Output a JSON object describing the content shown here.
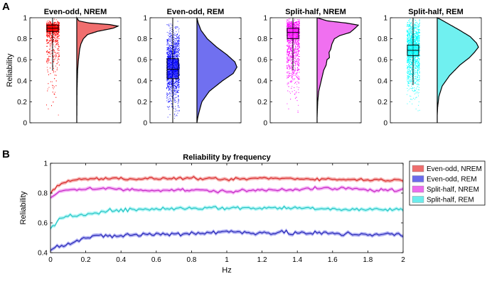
{
  "chart_data": [
    {
      "type": "raincloud",
      "panel_label": "A",
      "ylabel": "Reliability",
      "ylim": [
        0,
        1
      ],
      "yticks": [
        "0",
        "0.2",
        "0.4",
        "0.6",
        "0.8",
        "1"
      ],
      "subplots": [
        {
          "title": "Even-odd, NREM",
          "color": "#ff0000",
          "fill": "#f06e6e",
          "median": 0.9,
          "q1": 0.87,
          "q3": 0.93,
          "whisker_low": 0.5,
          "whisker_high": 1.0,
          "points_min": 0.06,
          "density": [
            [
              0.02,
              0.0
            ],
            [
              0.3,
              0.005
            ],
            [
              0.5,
              0.02
            ],
            [
              0.6,
              0.04
            ],
            [
              0.7,
              0.07
            ],
            [
              0.75,
              0.1
            ],
            [
              0.8,
              0.16
            ],
            [
              0.84,
              0.26
            ],
            [
              0.87,
              0.5
            ],
            [
              0.9,
              0.88
            ],
            [
              0.92,
              1.0
            ],
            [
              0.935,
              0.8
            ],
            [
              0.95,
              0.3
            ],
            [
              0.97,
              0.05
            ],
            [
              1.0,
              0.0
            ]
          ]
        },
        {
          "title": "Even-odd, REM",
          "color": "#0000ff",
          "fill": "#7070f0",
          "median": 0.51,
          "q1": 0.42,
          "q3": 0.61,
          "whisker_low": 0.0,
          "whisker_high": 1.0,
          "points_min": 0.0,
          "density": [
            [
              0.0,
              0.0
            ],
            [
              0.05,
              0.02
            ],
            [
              0.1,
              0.05
            ],
            [
              0.2,
              0.12
            ],
            [
              0.3,
              0.3
            ],
            [
              0.4,
              0.62
            ],
            [
              0.47,
              0.88
            ],
            [
              0.53,
              0.97
            ],
            [
              0.58,
              0.92
            ],
            [
              0.65,
              0.72
            ],
            [
              0.72,
              0.48
            ],
            [
              0.8,
              0.25
            ],
            [
              0.88,
              0.1
            ],
            [
              0.95,
              0.03
            ],
            [
              1.0,
              0.0
            ]
          ]
        },
        {
          "title": "Split-half, NREM",
          "color": "#ff00ff",
          "fill": "#f070f0",
          "median": 0.86,
          "q1": 0.8,
          "q3": 0.9,
          "whisker_low": 0.5,
          "whisker_high": 1.0,
          "points_min": 0.07,
          "density": [
            [
              0.05,
              0.0
            ],
            [
              0.2,
              0.015
            ],
            [
              0.3,
              0.04
            ],
            [
              0.4,
              0.1
            ],
            [
              0.5,
              0.16
            ],
            [
              0.55,
              0.22
            ],
            [
              0.6,
              0.24
            ],
            [
              0.62,
              0.3
            ],
            [
              0.67,
              0.29
            ],
            [
              0.7,
              0.33
            ],
            [
              0.75,
              0.36
            ],
            [
              0.8,
              0.42
            ],
            [
              0.83,
              0.55
            ],
            [
              0.86,
              0.8
            ],
            [
              0.9,
              0.92
            ],
            [
              0.93,
              1.0
            ],
            [
              0.95,
              0.7
            ],
            [
              0.97,
              0.25
            ],
            [
              1.0,
              0.0
            ]
          ]
        },
        {
          "title": "Split-half, REM",
          "color": "#00ffff",
          "fill": "#70f0f0",
          "median": 0.69,
          "q1": 0.64,
          "q3": 0.74,
          "whisker_low": 0.36,
          "whisker_high": 1.0,
          "points_min": 0.07,
          "density": [
            [
              0.07,
              0.0
            ],
            [
              0.15,
              0.01
            ],
            [
              0.25,
              0.04
            ],
            [
              0.35,
              0.12
            ],
            [
              0.45,
              0.3
            ],
            [
              0.55,
              0.55
            ],
            [
              0.62,
              0.78
            ],
            [
              0.67,
              0.9
            ],
            [
              0.72,
              1.0
            ],
            [
              0.76,
              0.95
            ],
            [
              0.82,
              0.8
            ],
            [
              0.88,
              0.55
            ],
            [
              0.94,
              0.28
            ],
            [
              0.98,
              0.1
            ],
            [
              1.0,
              0.0
            ]
          ]
        }
      ]
    },
    {
      "type": "line",
      "panel_label": "B",
      "title": "Reliability by frequency",
      "xlabel": "Hz",
      "ylabel": "Reliability",
      "xlim": [
        0,
        2
      ],
      "ylim": [
        0.4,
        1.0
      ],
      "xticks": [
        "0",
        "0.2",
        "0.4",
        "0.6",
        "0.8",
        "1",
        "1.2",
        "1.4",
        "1.6",
        "1.8",
        "2"
      ],
      "yticks": [
        "0.4",
        "0.6",
        "0.8",
        "1"
      ],
      "legend_position": "right",
      "series": [
        {
          "name": "Even-odd, NREM",
          "color": "#d42020",
          "legend_color": "#ee6e6e",
          "base": [
            [
              0,
              0.8
            ],
            [
              0.05,
              0.86
            ],
            [
              0.1,
              0.88
            ],
            [
              0.2,
              0.895
            ],
            [
              0.3,
              0.9
            ],
            [
              0.5,
              0.895
            ],
            [
              0.8,
              0.9
            ],
            [
              1.0,
              0.89
            ],
            [
              1.2,
              0.9
            ],
            [
              1.5,
              0.895
            ],
            [
              1.7,
              0.89
            ],
            [
              1.8,
              0.89
            ],
            [
              2.0,
              0.885
            ]
          ],
          "noise": 0.008
        },
        {
          "name": "Even-odd, REM",
          "color": "#2020b0",
          "legend_color": "#6b6bea",
          "base": [
            [
              0,
              0.43
            ],
            [
              0.05,
              0.45
            ],
            [
              0.1,
              0.46
            ],
            [
              0.2,
              0.5
            ],
            [
              0.3,
              0.51
            ],
            [
              0.5,
              0.52
            ],
            [
              0.8,
              0.53
            ],
            [
              1.0,
              0.54
            ],
            [
              1.2,
              0.535
            ],
            [
              1.5,
              0.53
            ],
            [
              1.7,
              0.525
            ],
            [
              1.8,
              0.525
            ],
            [
              2.0,
              0.52
            ]
          ],
          "noise": 0.015
        },
        {
          "name": "Split-half, NREM",
          "color": "#c020c0",
          "legend_color": "#ec6cec",
          "base": [
            [
              0,
              0.76
            ],
            [
              0.05,
              0.81
            ],
            [
              0.1,
              0.82
            ],
            [
              0.2,
              0.83
            ],
            [
              0.3,
              0.83
            ],
            [
              0.5,
              0.82
            ],
            [
              0.8,
              0.82
            ],
            [
              1.0,
              0.81
            ],
            [
              1.2,
              0.82
            ],
            [
              1.5,
              0.83
            ],
            [
              1.7,
              0.83
            ],
            [
              1.8,
              0.82
            ],
            [
              2.0,
              0.82
            ]
          ],
          "noise": 0.01
        },
        {
          "name": "Split-half, REM",
          "color": "#20c0c0",
          "legend_color": "#6cecec",
          "base": [
            [
              0,
              0.56
            ],
            [
              0.05,
              0.62
            ],
            [
              0.1,
              0.64
            ],
            [
              0.2,
              0.66
            ],
            [
              0.3,
              0.68
            ],
            [
              0.5,
              0.69
            ],
            [
              0.8,
              0.7
            ],
            [
              1.0,
              0.7
            ],
            [
              1.2,
              0.7
            ],
            [
              1.5,
              0.7
            ],
            [
              1.7,
              0.69
            ],
            [
              1.8,
              0.69
            ],
            [
              2.0,
              0.69
            ]
          ],
          "noise": 0.012
        }
      ]
    }
  ]
}
